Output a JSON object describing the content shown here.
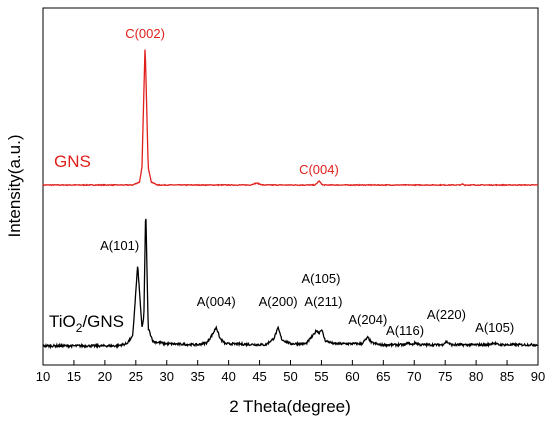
{
  "chart_data": {
    "type": "line",
    "xlabel": "2 Theta(degree)",
    "ylabel": "Intensity(a.u.)",
    "xlim": [
      10,
      90
    ],
    "x_ticks": [
      10,
      15,
      20,
      25,
      30,
      35,
      40,
      45,
      50,
      55,
      60,
      65,
      70,
      75,
      80,
      85,
      90
    ],
    "y_ticks_shown": false,
    "grid": false,
    "series": [
      {
        "name": "GNS",
        "color": "#e0201c",
        "baseline": 0,
        "points": [
          [
            10,
            2
          ],
          [
            24.5,
            2
          ],
          [
            25.6,
            5
          ],
          [
            26.0,
            20
          ],
          [
            26.2,
            70
          ],
          [
            26.5,
            142
          ],
          [
            26.8,
            70
          ],
          [
            27.0,
            20
          ],
          [
            27.5,
            5
          ],
          [
            28.5,
            2
          ],
          [
            43.5,
            2
          ],
          [
            44.5,
            4
          ],
          [
            45.5,
            2
          ],
          [
            54,
            2
          ],
          [
            54.6,
            6
          ],
          [
            55.2,
            2
          ],
          [
            77.5,
            2
          ],
          [
            77.8,
            3
          ],
          [
            78.1,
            2
          ],
          [
            90,
            2
          ]
        ],
        "label": "GNS",
        "annotations": [
          {
            "text": "C(002)",
            "x": 26.5
          },
          {
            "text": "C(004)",
            "x": 54.6
          }
        ]
      },
      {
        "name": "TiO2/GNS",
        "color": "#000000",
        "baseline": 0,
        "points": [
          [
            10,
            3
          ],
          [
            22,
            3
          ],
          [
            23.5,
            5
          ],
          [
            24.5,
            12
          ],
          [
            25.3,
            80
          ],
          [
            26.0,
            20
          ],
          [
            26.3,
            30
          ],
          [
            26.6,
            135
          ],
          [
            27.0,
            20
          ],
          [
            27.8,
            7
          ],
          [
            30,
            5
          ],
          [
            35,
            4
          ],
          [
            36.5,
            6
          ],
          [
            37.5,
            15
          ],
          [
            38.0,
            21
          ],
          [
            38.6,
            10
          ],
          [
            39.5,
            5
          ],
          [
            46,
            4
          ],
          [
            47.3,
            10
          ],
          [
            48.0,
            20
          ],
          [
            48.6,
            9
          ],
          [
            50,
            5
          ],
          [
            52.5,
            5
          ],
          [
            53.8,
            14
          ],
          [
            54.2,
            18
          ],
          [
            54.6,
            15
          ],
          [
            55.0,
            19
          ],
          [
            55.6,
            8
          ],
          [
            57,
            5
          ],
          [
            61.5,
            5
          ],
          [
            62.5,
            11
          ],
          [
            63.1,
            6
          ],
          [
            64.5,
            4
          ],
          [
            68.5,
            4
          ],
          [
            69.0,
            6
          ],
          [
            69.6,
            4
          ],
          [
            70.2,
            6
          ],
          [
            71,
            4
          ],
          [
            74.5,
            4
          ],
          [
            75.2,
            7
          ],
          [
            76,
            4
          ],
          [
            82,
            4
          ],
          [
            82.8,
            6
          ],
          [
            83.6,
            4
          ],
          [
            90,
            4
          ]
        ],
        "label": "TiO",
        "label_sub": "2",
        "label_rest": "/GNS",
        "annotations": [
          {
            "text": "A(101)",
            "x": 25.3
          },
          {
            "text": "A(004)",
            "x": 38.0
          },
          {
            "text": "A(200)",
            "x": 48.0
          },
          {
            "text": "A(105)",
            "x": 54.6
          },
          {
            "text": "A(211)",
            "x": 55.0
          },
          {
            "text": "A(204)",
            "x": 62.5
          },
          {
            "text": "A(116)",
            "x": 69.0
          },
          {
            "text": "A(220)",
            "x": 75.2
          },
          {
            "text": "A(105)",
            "x": 83.0
          }
        ]
      }
    ]
  }
}
